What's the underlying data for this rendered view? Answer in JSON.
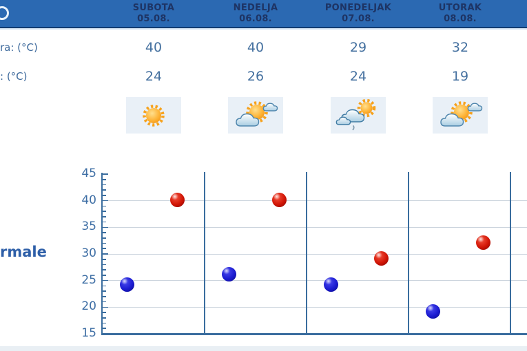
{
  "header": {
    "days": [
      {
        "name": "SUBOTA",
        "date": "05.08."
      },
      {
        "name": "NEDELJA",
        "date": "06.08."
      },
      {
        "name": "PONEDELJAK",
        "date": "07.08."
      },
      {
        "name": "UTORAK",
        "date": "08.08."
      }
    ]
  },
  "table": {
    "max_label": "ra: (°C)",
    "min_label": ": (°C)",
    "max_values": [
      "40",
      "40",
      "29",
      "32"
    ],
    "min_values": [
      "24",
      "26",
      "24",
      "19"
    ]
  },
  "icons": [
    "sunny",
    "partly-cloudy",
    "cloudy-light-rain",
    "partly-cloudy"
  ],
  "side_label": "rmale",
  "colors": {
    "header_bg": "#2b69b2",
    "header_text": "#1e3464",
    "header_border": "#123c72",
    "value_text": "#44709f",
    "axis": "#3a6d9e",
    "gridline": "#cdd5de",
    "icon_box_bg": "#e9f0f7",
    "dot_max": "#d11505",
    "dot_min": "#1b1bd0"
  },
  "chart_data": {
    "type": "scatter",
    "categories": [
      "SUBOTA 05.08.",
      "NEDELJA 06.08.",
      "PONEDELJAK 07.08.",
      "UTORAK 08.08."
    ],
    "series": [
      {
        "name": "max",
        "color": "#d11505",
        "values": [
          40,
          40,
          29,
          32
        ]
      },
      {
        "name": "min",
        "color": "#1b1bd0",
        "values": [
          24,
          26,
          24,
          19
        ]
      }
    ],
    "ylim": [
      15,
      45
    ],
    "yticks": [
      15,
      20,
      25,
      30,
      35,
      40,
      45
    ],
    "minor_tick_step": 1,
    "grid": true,
    "legend_text_visible": "rmale"
  }
}
